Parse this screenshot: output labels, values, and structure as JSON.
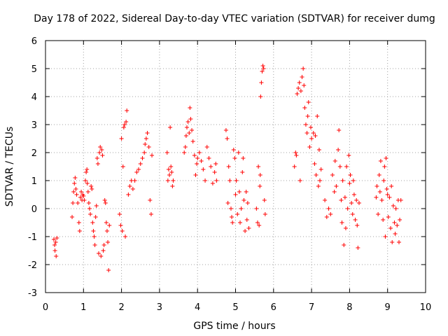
{
  "chart_data": {
    "type": "scatter",
    "title": "Day 178 of 2022, Sidereal Day-to-day VTEC variation (SDTVAR) for receiver dumg",
    "xlabel": "GPS time / hours",
    "ylabel": "SDTVAR / TECUs",
    "xlim": [
      0,
      10
    ],
    "ylim": [
      -3,
      6
    ],
    "xticks": [
      "0",
      "1",
      "2",
      "3",
      "4",
      "5",
      "6",
      "7",
      "8",
      "9",
      "10"
    ],
    "yticks": [
      "-3",
      "-2",
      "-1",
      "0",
      "1",
      "2",
      "3",
      "4",
      "5",
      "6"
    ],
    "grid": true,
    "marker": "+",
    "color": "#ff0000",
    "series": [
      {
        "name": "SDTVAR",
        "points": [
          [
            0.22,
            -1.1
          ],
          [
            0.24,
            -1.3
          ],
          [
            0.25,
            -1.5
          ],
          [
            0.27,
            -1.2
          ],
          [
            0.28,
            -1.7
          ],
          [
            0.3,
            -1.05
          ],
          [
            0.7,
            -0.3
          ],
          [
            0.72,
            0.2
          ],
          [
            0.74,
            0.6
          ],
          [
            0.76,
            0.9
          ],
          [
            0.78,
            1.1
          ],
          [
            0.8,
            0.7
          ],
          [
            0.82,
            0.5
          ],
          [
            0.85,
            0.2
          ],
          [
            0.88,
            -0.5
          ],
          [
            0.9,
            -0.8
          ],
          [
            0.92,
            0.4
          ],
          [
            0.94,
            0.6
          ],
          [
            0.96,
            0.3
          ],
          [
            0.98,
            0.5
          ],
          [
            1.0,
            0.45
          ],
          [
            1.02,
            0.3
          ],
          [
            1.05,
            1.0
          ],
          [
            1.07,
            1.3
          ],
          [
            1.09,
            1.4
          ],
          [
            1.1,
            0.9
          ],
          [
            1.12,
            0.6
          ],
          [
            1.14,
            0.2
          ],
          [
            1.16,
            0.0
          ],
          [
            1.18,
            -0.2
          ],
          [
            1.2,
            0.8
          ],
          [
            1.22,
            0.7
          ],
          [
            1.24,
            -0.5
          ],
          [
            1.26,
            -0.8
          ],
          [
            1.28,
            -1.0
          ],
          [
            1.3,
            -1.3
          ],
          [
            1.32,
            -0.3
          ],
          [
            1.34,
            0.1
          ],
          [
            1.36,
            1.8
          ],
          [
            1.38,
            1.6
          ],
          [
            1.4,
            -1.6
          ],
          [
            1.42,
            2.0
          ],
          [
            1.44,
            2.2
          ],
          [
            1.46,
            -1.7
          ],
          [
            1.48,
            2.1
          ],
          [
            1.5,
            1.9
          ],
          [
            1.52,
            -1.5
          ],
          [
            1.54,
            -1.3
          ],
          [
            1.56,
            0.3
          ],
          [
            1.58,
            0.2
          ],
          [
            1.6,
            -0.5
          ],
          [
            1.62,
            -0.8
          ],
          [
            1.64,
            -1.2
          ],
          [
            1.66,
            -2.2
          ],
          [
            1.68,
            -0.6
          ],
          [
            1.95,
            -0.2
          ],
          [
            1.98,
            -0.6
          ],
          [
            2.0,
            2.5
          ],
          [
            2.02,
            -0.8
          ],
          [
            2.04,
            1.5
          ],
          [
            2.06,
            2.9
          ],
          [
            2.08,
            3.0
          ],
          [
            2.1,
            -1.0
          ],
          [
            2.12,
            3.1
          ],
          [
            2.14,
            3.5
          ],
          [
            2.18,
            0.5
          ],
          [
            2.22,
            0.8
          ],
          [
            2.26,
            1.0
          ],
          [
            2.3,
            0.7
          ],
          [
            2.35,
            1.0
          ],
          [
            2.4,
            1.3
          ],
          [
            2.45,
            1.4
          ],
          [
            2.5,
            1.6
          ],
          [
            2.55,
            1.8
          ],
          [
            2.6,
            2.0
          ],
          [
            2.62,
            2.3
          ],
          [
            2.65,
            2.5
          ],
          [
            2.68,
            2.7
          ],
          [
            2.72,
            2.2
          ],
          [
            2.75,
            0.3
          ],
          [
            2.78,
            -0.2
          ],
          [
            2.8,
            1.9
          ],
          [
            3.2,
            2.0
          ],
          [
            3.22,
            1.0
          ],
          [
            3.24,
            1.4
          ],
          [
            3.26,
            1.2
          ],
          [
            3.28,
            2.9
          ],
          [
            3.3,
            1.5
          ],
          [
            3.32,
            1.3
          ],
          [
            3.34,
            0.8
          ],
          [
            3.36,
            1.0
          ],
          [
            3.65,
            2.0
          ],
          [
            3.68,
            2.2
          ],
          [
            3.7,
            2.6
          ],
          [
            3.72,
            2.9
          ],
          [
            3.75,
            3.1
          ],
          [
            3.78,
            2.7
          ],
          [
            3.8,
            3.6
          ],
          [
            3.82,
            3.2
          ],
          [
            3.85,
            2.8
          ],
          [
            3.88,
            2.4
          ],
          [
            3.92,
            1.9
          ],
          [
            3.95,
            1.2
          ],
          [
            3.98,
            1.6
          ],
          [
            4.0,
            1.8
          ],
          [
            4.05,
            2.0
          ],
          [
            4.1,
            1.7
          ],
          [
            4.15,
            1.4
          ],
          [
            4.2,
            1.0
          ],
          [
            4.25,
            2.2
          ],
          [
            4.3,
            1.8
          ],
          [
            4.35,
            1.5
          ],
          [
            4.4,
            0.9
          ],
          [
            4.45,
            1.3
          ],
          [
            4.48,
            1.6
          ],
          [
            4.5,
            1.0
          ],
          [
            4.75,
            2.8
          ],
          [
            4.78,
            2.5
          ],
          [
            4.8,
            0.2
          ],
          [
            4.82,
            1.5
          ],
          [
            4.85,
            1.0
          ],
          [
            4.88,
            0.0
          ],
          [
            4.9,
            -0.3
          ],
          [
            4.92,
            -0.5
          ],
          [
            4.95,
            2.1
          ],
          [
            4.98,
            1.8
          ],
          [
            5.0,
            0.5
          ],
          [
            5.02,
            1.0
          ],
          [
            5.05,
            -0.2
          ],
          [
            5.08,
            2.0
          ],
          [
            5.1,
            0.6
          ],
          [
            5.12,
            -0.5
          ],
          [
            5.15,
            0.0
          ],
          [
            5.18,
            1.3
          ],
          [
            5.2,
            1.8
          ],
          [
            5.22,
            0.3
          ],
          [
            5.25,
            -0.8
          ],
          [
            5.28,
            0.6
          ],
          [
            5.3,
            -0.4
          ],
          [
            5.32,
            0.2
          ],
          [
            5.35,
            -0.7
          ],
          [
            5.55,
            0.0
          ],
          [
            5.58,
            -0.5
          ],
          [
            5.6,
            1.5
          ],
          [
            5.62,
            -0.6
          ],
          [
            5.64,
            0.8
          ],
          [
            5.65,
            1.2
          ],
          [
            5.66,
            4.0
          ],
          [
            5.68,
            4.5
          ],
          [
            5.7,
            4.9
          ],
          [
            5.72,
            5.1
          ],
          [
            5.74,
            5.0
          ],
          [
            5.76,
            0.3
          ],
          [
            5.78,
            -0.2
          ],
          [
            6.55,
            1.5
          ],
          [
            6.58,
            2.0
          ],
          [
            6.6,
            1.9
          ],
          [
            6.62,
            4.1
          ],
          [
            6.65,
            4.3
          ],
          [
            6.68,
            4.5
          ],
          [
            6.7,
            1.0
          ],
          [
            6.72,
            4.2
          ],
          [
            6.75,
            4.7
          ],
          [
            6.78,
            5.0
          ],
          [
            6.8,
            4.4
          ],
          [
            6.82,
            3.6
          ],
          [
            6.85,
            3.0
          ],
          [
            6.88,
            2.7
          ],
          [
            6.9,
            3.3
          ],
          [
            6.92,
            3.8
          ],
          [
            6.95,
            2.2
          ],
          [
            6.98,
            2.9
          ],
          [
            7.0,
            2.5
          ],
          [
            7.05,
            2.7
          ],
          [
            7.08,
            1.6
          ],
          [
            7.1,
            2.6
          ],
          [
            7.12,
            1.2
          ],
          [
            7.15,
            3.3
          ],
          [
            7.18,
            0.8
          ],
          [
            7.2,
            2.1
          ],
          [
            7.22,
            1.0
          ],
          [
            7.25,
            1.4
          ],
          [
            7.35,
            0.3
          ],
          [
            7.4,
            -0.3
          ],
          [
            7.45,
            0.0
          ],
          [
            7.5,
            -0.2
          ],
          [
            7.55,
            1.2
          ],
          [
            7.6,
            0.6
          ],
          [
            7.62,
            1.7
          ],
          [
            7.65,
            0.8
          ],
          [
            7.7,
            2.1
          ],
          [
            7.72,
            2.8
          ],
          [
            7.75,
            1.5
          ],
          [
            7.78,
            0.3
          ],
          [
            7.8,
            -0.5
          ],
          [
            7.82,
            1.0
          ],
          [
            7.85,
            -1.3
          ],
          [
            7.88,
            0.4
          ],
          [
            7.9,
            -0.7
          ],
          [
            7.92,
            1.5
          ],
          [
            7.95,
            0.0
          ],
          [
            7.98,
            1.9
          ],
          [
            8.0,
            0.9
          ],
          [
            8.02,
            1.2
          ],
          [
            8.05,
            0.2
          ],
          [
            8.08,
            -0.2
          ],
          [
            8.1,
            1.0
          ],
          [
            8.12,
            0.5
          ],
          [
            8.15,
            -0.4
          ],
          [
            8.18,
            0.3
          ],
          [
            8.2,
            -0.6
          ],
          [
            8.22,
            -1.4
          ],
          [
            8.25,
            0.2
          ],
          [
            8.7,
            0.4
          ],
          [
            8.72,
            0.8
          ],
          [
            8.75,
            -0.2
          ],
          [
            8.78,
            1.2
          ],
          [
            8.8,
            0.6
          ],
          [
            8.82,
            1.7
          ],
          [
            8.85,
            0.3
          ],
          [
            8.88,
            -0.4
          ],
          [
            8.9,
            1.0
          ],
          [
            8.92,
            1.5
          ],
          [
            8.94,
            -1.0
          ],
          [
            8.96,
            1.8
          ],
          [
            8.98,
            0.7
          ],
          [
            9.0,
            0.5
          ],
          [
            9.02,
            -0.3
          ],
          [
            9.05,
            0.4
          ],
          [
            9.08,
            -0.7
          ],
          [
            9.1,
            0.8
          ],
          [
            9.12,
            -1.2
          ],
          [
            9.15,
            0.1
          ],
          [
            9.18,
            -0.5
          ],
          [
            9.2,
            -0.9
          ],
          [
            9.22,
            0.0
          ],
          [
            9.25,
            -0.6
          ],
          [
            9.28,
            0.3
          ],
          [
            9.3,
            -1.2
          ],
          [
            9.32,
            -0.4
          ],
          [
            9.35,
            0.3
          ]
        ]
      }
    ]
  }
}
